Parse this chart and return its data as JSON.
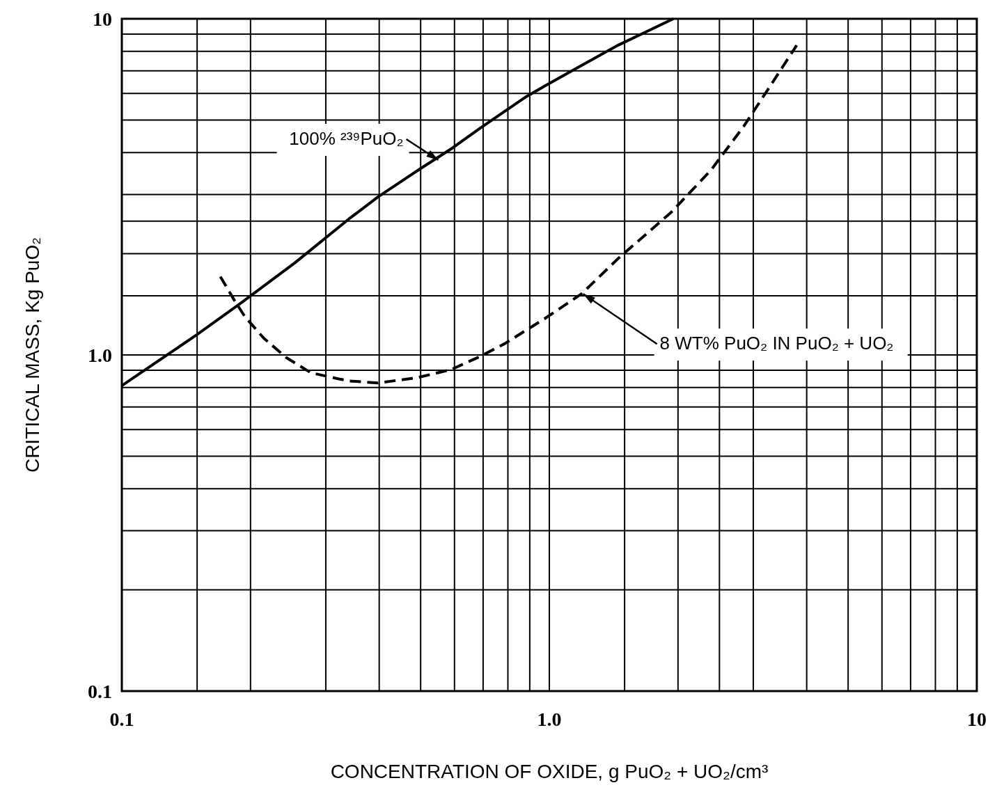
{
  "chart_data": {
    "type": "line",
    "xlabel": "CONCENTRATION OF OXIDE, g PuO₂ + UO₂/cm³",
    "ylabel": "CRITICAL MASS, Kg PuO₂",
    "log": "xy",
    "xlim": [
      0.1,
      10
    ],
    "ylim": [
      0.1,
      10
    ],
    "xticks": [
      {
        "value": 0.1,
        "label": "0.1"
      },
      {
        "value": 0.15,
        "label": null
      },
      {
        "value": 0.2,
        "label": null
      },
      {
        "value": 0.3,
        "label": null
      },
      {
        "value": 0.4,
        "label": null
      },
      {
        "value": 0.5,
        "label": null
      },
      {
        "value": 0.6,
        "label": null
      },
      {
        "value": 0.7,
        "label": null
      },
      {
        "value": 0.8,
        "label": null
      },
      {
        "value": 0.9,
        "label": null
      },
      {
        "value": 1,
        "label": "1.0"
      },
      {
        "value": 1.5,
        "label": null
      },
      {
        "value": 2,
        "label": null
      },
      {
        "value": 2.5,
        "label": null
      },
      {
        "value": 3,
        "label": null
      },
      {
        "value": 4,
        "label": null
      },
      {
        "value": 5,
        "label": null
      },
      {
        "value": 6,
        "label": null
      },
      {
        "value": 7,
        "label": null
      },
      {
        "value": 8,
        "label": null
      },
      {
        "value": 9,
        "label": null
      },
      {
        "value": 10,
        "label": "10"
      }
    ],
    "yticks": [
      {
        "value": 0.1,
        "label": "0.1"
      },
      {
        "value": 0.2,
        "label": null
      },
      {
        "value": 0.3,
        "label": null
      },
      {
        "value": 0.4,
        "label": null
      },
      {
        "value": 0.5,
        "label": null
      },
      {
        "value": 0.6,
        "label": null
      },
      {
        "value": 0.7,
        "label": null
      },
      {
        "value": 0.8,
        "label": null
      },
      {
        "value": 0.9,
        "label": null
      },
      {
        "value": 1,
        "label": "1.0"
      },
      {
        "value": 1.5,
        "label": null
      },
      {
        "value": 2,
        "label": null
      },
      {
        "value": 2.5,
        "label": null
      },
      {
        "value": 3,
        "label": null
      },
      {
        "value": 4,
        "label": null
      },
      {
        "value": 5,
        "label": null
      },
      {
        "value": 6,
        "label": null
      },
      {
        "value": 7,
        "label": null
      },
      {
        "value": 8,
        "label": null
      },
      {
        "value": 9,
        "label": null
      },
      {
        "value": 10,
        "label": "10"
      }
    ],
    "grid": true,
    "marker": "none",
    "series": [
      {
        "color": "#000000",
        "line_style": "solid",
        "x": [
          0.1,
          0.15,
          0.189,
          0.254,
          0.34,
          0.397,
          0.494,
          0.594,
          0.689,
          0.878,
          0.973,
          1.135,
          1.447,
          1.95
        ],
        "values": [
          0.81,
          1.15,
          1.42,
          1.88,
          2.54,
          2.95,
          3.55,
          4.13,
          4.73,
          5.84,
          6.3,
          7.03,
          8.34,
          10
        ]
      },
      {
        "color": "#000000",
        "line_style": "dashed",
        "x": [
          0.17,
          0.183,
          0.194,
          0.215,
          0.243,
          0.277,
          0.324,
          0.34,
          0.397,
          0.491,
          0.59,
          0.689,
          0.786,
          0.973,
          1.19,
          1.445,
          1.93,
          2.39,
          2.85,
          3.27,
          3.79
        ],
        "values": [
          1.71,
          1.46,
          1.3,
          1.12,
          0.98,
          0.885,
          0.847,
          0.837,
          0.825,
          0.856,
          0.905,
          0.99,
          1.08,
          1.28,
          1.52,
          1.93,
          2.66,
          3.55,
          4.79,
          6.25,
          8.34
        ]
      }
    ],
    "annotations": [
      {
        "text": "100% ²³⁹PuO₂",
        "x": 0.55,
        "y": 3.8
      },
      {
        "text": "8 WT% PuO₂ IN PuO₂ + UO₂",
        "x": 1.2,
        "y": 1.52
      }
    ]
  }
}
